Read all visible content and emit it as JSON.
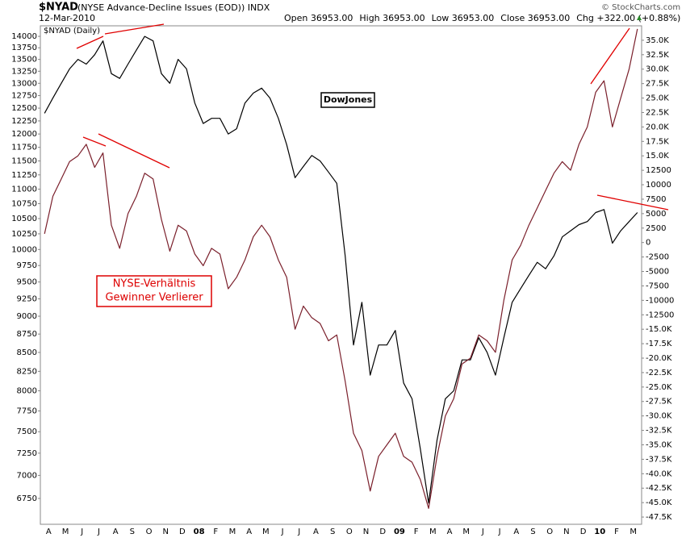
{
  "chart_data": {
    "type": "line",
    "header": {
      "symbol": "$NYAD",
      "name": "(NYSE Advance-Decline Issues (EOD)) INDX",
      "date": "12-Mar-2010",
      "quote": [
        "Open 36953.00",
        "High 36953.00",
        "Low 36953.00",
        "Close 36953.00",
        "Chg +322.00 (+0.88%)"
      ],
      "copyright": "© StockCharts.com"
    },
    "annotations": [
      "NYSE-Verhältnis",
      "Gewinner Verlierer"
    ],
    "categories": [
      "A",
      null,
      "M",
      null,
      "J",
      null,
      "J",
      null,
      "A",
      null,
      "S",
      null,
      "O",
      null,
      "N",
      null,
      "D",
      null,
      "08",
      null,
      "F",
      null,
      "M",
      null,
      "A",
      null,
      "M",
      null,
      "J",
      null,
      "J",
      null,
      "A",
      null,
      "S",
      null,
      "O",
      null,
      "N",
      null,
      "D",
      null,
      "09",
      null,
      "F",
      null,
      "M",
      null,
      "A",
      null,
      "M",
      null,
      "J",
      null,
      "J",
      null,
      "A",
      null,
      "S",
      null,
      "O",
      null,
      "N",
      null,
      "D",
      null,
      "10",
      null,
      "F",
      null,
      "M",
      null
    ],
    "series": [
      {
        "name": "DowJones",
        "color": "#000000",
        "values": [
          12400,
          12700,
          13000,
          13300,
          13500,
          13400,
          13600,
          13900,
          13200,
          13100,
          13400,
          13700,
          14000,
          13900,
          13200,
          13000,
          13500,
          13300,
          12600,
          12200,
          12300,
          12300,
          12000,
          12100,
          12600,
          12800,
          12900,
          12700,
          12300,
          11800,
          11200,
          11400,
          11600,
          11500,
          11300,
          11100,
          9900,
          8600,
          9200,
          8200,
          8600,
          8600,
          8800,
          8100,
          7900,
          7300,
          6700,
          7400,
          7900,
          8000,
          8400,
          8400,
          8700,
          8500,
          8200,
          8700,
          9200,
          9400,
          9600,
          9800,
          9700,
          9900,
          10200,
          10300,
          10400,
          10450,
          10600,
          10650,
          10100,
          10300,
          10450,
          10600
        ]
      },
      {
        "name": "$NYAD (Daily)",
        "color": "#7a1f2b",
        "axis": "y2",
        "values": [
          1500,
          8000,
          11000,
          14000,
          15000,
          17000,
          13000,
          15500,
          3000,
          -1000,
          5000,
          8000,
          12000,
          11000,
          4000,
          -1500,
          3000,
          2000,
          -2000,
          -4000,
          -1000,
          -2000,
          -8000,
          -6000,
          -3000,
          1000,
          3000,
          1000,
          -3000,
          -6000,
          -15000,
          -11000,
          -13000,
          -14000,
          -17000,
          -16000,
          -24000,
          -33000,
          -36000,
          -43000,
          -37000,
          -35000,
          -33000,
          -37000,
          -38000,
          -41000,
          -46000,
          -37000,
          -30000,
          -27000,
          -21000,
          -20000,
          -16000,
          -17000,
          -19000,
          -10000,
          -3000,
          -500,
          3000,
          6000,
          9000,
          12000,
          14000,
          12500,
          17000,
          20000,
          26000,
          28000,
          20000,
          25000,
          30000,
          36953
        ]
      }
    ],
    "ylog": true,
    "ylim": [
      6480,
      14235
    ],
    "yticks": [
      14000,
      13750,
      13500,
      13250,
      13000,
      12750,
      12500,
      12250,
      12000,
      11750,
      11500,
      11250,
      11000,
      10750,
      10500,
      10250,
      10000,
      9750,
      9500,
      9250,
      9000,
      8750,
      8500,
      8250,
      8000,
      7750,
      7500,
      7250,
      7000,
      6750
    ],
    "y2lim": [
      -48750,
      37500
    ],
    "y2ticks": [
      {
        "value": 35000,
        "label": "35.0K"
      },
      {
        "value": 32500,
        "label": "32.5K"
      },
      {
        "value": 30000,
        "label": "30.0K"
      },
      {
        "value": 27500,
        "label": "27.5K"
      },
      {
        "value": 25000,
        "label": "25.0K"
      },
      {
        "value": 22500,
        "label": "22.5K"
      },
      {
        "value": 20000,
        "label": "20.0K"
      },
      {
        "value": 17500,
        "label": "17.5K"
      },
      {
        "value": 15000,
        "label": "15.0K"
      },
      12500,
      10000,
      7500,
      5000,
      2500,
      0,
      -2500,
      -5000,
      -7500,
      -10000,
      -12500,
      {
        "value": -15000,
        "label": "-15.0K"
      },
      {
        "value": -17500,
        "label": "-17.5K"
      },
      {
        "value": -20000,
        "label": "-20.0K"
      },
      {
        "value": -22500,
        "label": "-22.5K"
      },
      {
        "value": -25000,
        "label": "-25.0K"
      },
      {
        "value": -27500,
        "label": "-27.5K"
      },
      {
        "value": -30000,
        "label": "-30.0K"
      },
      {
        "value": -32500,
        "label": "-32.5K"
      },
      {
        "value": -35000,
        "label": "-35.0K"
      },
      {
        "value": -37500,
        "label": "-37.5K"
      },
      {
        "value": -40000,
        "label": "-40.0K"
      },
      {
        "value": -42500,
        "label": "-42.5K"
      },
      {
        "value": -45000,
        "label": "-45.0K"
      },
      {
        "value": -47500,
        "label": "-47.5K"
      }
    ],
    "grid": false
  }
}
